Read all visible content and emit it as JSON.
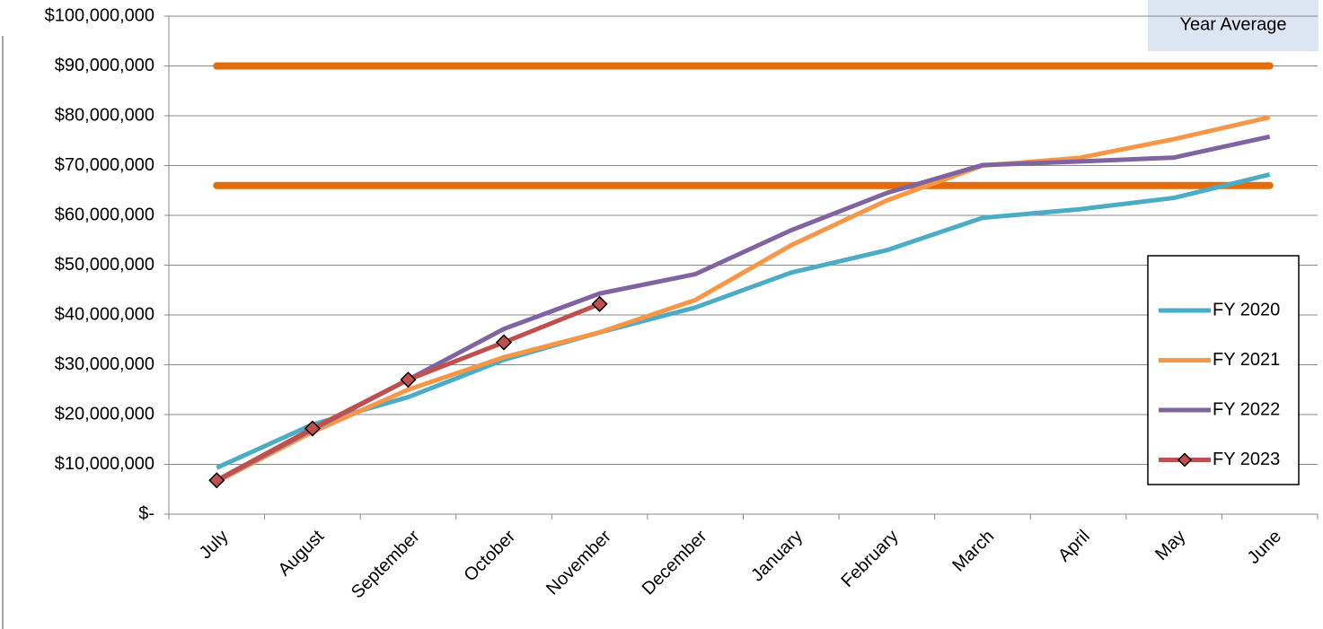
{
  "chart_data": {
    "type": "line",
    "categories": [
      "July",
      "August",
      "September",
      "October",
      "November",
      "December",
      "January",
      "February",
      "March",
      "April",
      "May",
      "June"
    ],
    "series": [
      {
        "name": "FY 2020",
        "color": "#4bacc6",
        "values": [
          9300000,
          18000000,
          23500000,
          31000000,
          36500000,
          41500000,
          48500000,
          53000000,
          59500000,
          61200000,
          63500000,
          68200000
        ]
      },
      {
        "name": "FY 2021",
        "color": "#f79646",
        "values": [
          6500000,
          16500000,
          25000000,
          31500000,
          36500000,
          43000000,
          54000000,
          63000000,
          70000000,
          71500000,
          75300000,
          79700000
        ]
      },
      {
        "name": "FY 2022",
        "color": "#8064a2",
        "values": [
          6700000,
          17000000,
          27000000,
          37200000,
          44300000,
          48200000,
          57000000,
          64500000,
          70100000,
          70800000,
          71600000,
          75800000
        ]
      },
      {
        "name": "FY 2023",
        "color": "#c0504d",
        "marker": "diamond",
        "values": [
          6800000,
          17200000,
          27000000,
          34500000,
          42200000,
          null,
          null,
          null,
          null,
          null,
          null,
          null
        ]
      }
    ],
    "reference_label": "Year Average",
    "reference_color": "#e46c0a",
    "reference_lines": [
      90000000,
      66000000
    ],
    "ylim": [
      0,
      100000000
    ],
    "yticks": [
      {
        "value": 0,
        "label": "$-"
      },
      {
        "value": 10000000,
        "label": "$10,000,000"
      },
      {
        "value": 20000000,
        "label": "$20,000,000"
      },
      {
        "value": 30000000,
        "label": "$30,000,000"
      },
      {
        "value": 40000000,
        "label": "$40,000,000"
      },
      {
        "value": 50000000,
        "label": "$50,000,000"
      },
      {
        "value": 60000000,
        "label": "$60,000,000"
      },
      {
        "value": 70000000,
        "label": "$70,000,000"
      },
      {
        "value": 80000000,
        "label": "$80,000,000"
      },
      {
        "value": 90000000,
        "label": "$90,000,000"
      },
      {
        "value": 100000000,
        "label": "$100,000,000"
      }
    ],
    "grid": true,
    "legend": "right"
  }
}
